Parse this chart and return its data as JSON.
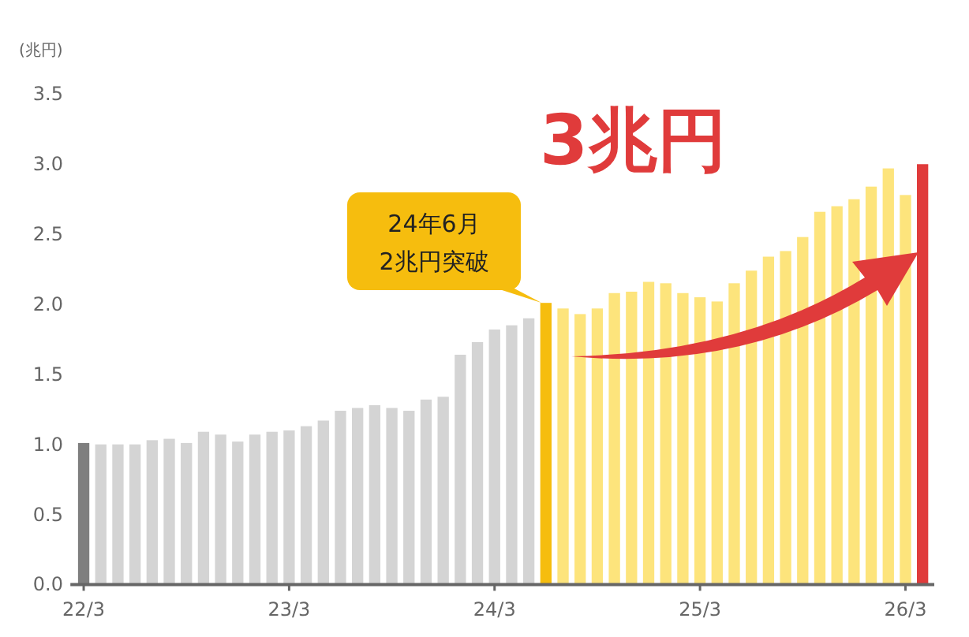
{
  "chart_data": {
    "type": "bar",
    "ylabel": "(兆円)",
    "categories": [
      "22/3",
      null,
      null,
      null,
      null,
      null,
      null,
      null,
      null,
      null,
      null,
      null,
      "23/3",
      null,
      null,
      null,
      null,
      null,
      null,
      null,
      null,
      null,
      null,
      null,
      "24/3",
      null,
      null,
      null,
      null,
      null,
      null,
      null,
      null,
      null,
      null,
      null,
      "25/3",
      null,
      null,
      null,
      null,
      null,
      null,
      null,
      null,
      null,
      null,
      null,
      "26/3",
      null
    ],
    "values": [
      1.01,
      1.0,
      1.0,
      1.0,
      1.03,
      1.04,
      1.01,
      1.09,
      1.07,
      1.02,
      1.07,
      1.09,
      1.1,
      1.13,
      1.17,
      1.24,
      1.26,
      1.28,
      1.26,
      1.24,
      1.32,
      1.34,
      1.64,
      1.73,
      1.82,
      1.85,
      1.9,
      2.01,
      1.97,
      1.93,
      1.97,
      2.08,
      2.09,
      2.16,
      2.15,
      2.08,
      2.05,
      2.02,
      2.15,
      2.24,
      2.34,
      2.38,
      2.48,
      2.66,
      2.7,
      2.75,
      2.84,
      2.97,
      2.78,
      3.0
    ],
    "colors": [
      "#7f7f7f",
      "#d4d4d4",
      "#d4d4d4",
      "#d4d4d4",
      "#d4d4d4",
      "#d4d4d4",
      "#d4d4d4",
      "#d4d4d4",
      "#d4d4d4",
      "#d4d4d4",
      "#d4d4d4",
      "#d4d4d4",
      "#d4d4d4",
      "#d4d4d4",
      "#d4d4d4",
      "#d4d4d4",
      "#d4d4d4",
      "#d4d4d4",
      "#d4d4d4",
      "#d4d4d4",
      "#d4d4d4",
      "#d4d4d4",
      "#d4d4d4",
      "#d4d4d4",
      "#d4d4d4",
      "#d4d4d4",
      "#d4d4d4",
      "#f6bd0e",
      "#fde47c",
      "#fde47c",
      "#fde47c",
      "#fde47c",
      "#fde47c",
      "#fde47c",
      "#fde47c",
      "#fde47c",
      "#fde47c",
      "#fde47c",
      "#fde47c",
      "#fde47c",
      "#fde47c",
      "#fde47c",
      "#fde47c",
      "#fde47c",
      "#fde47c",
      "#fde47c",
      "#fde47c",
      "#fde47c",
      "#fde47c",
      "#e03b3b"
    ],
    "ylim": [
      0,
      3.5
    ],
    "yticks": [
      {
        "value": 0,
        "label": "0.0"
      },
      {
        "value": 0.5,
        "label": "0.5"
      },
      {
        "value": 1,
        "label": "1.0"
      },
      {
        "value": 1.5,
        "label": "1.5"
      },
      {
        "value": 2,
        "label": "2.0"
      },
      {
        "value": 2.5,
        "label": "2.5"
      },
      {
        "value": 3,
        "label": "3.0"
      },
      {
        "value": 3.5,
        "label": "3.5"
      }
    ],
    "grid": false,
    "annotations": [
      "24年6月\n2兆円突破",
      "3兆円"
    ]
  }
}
